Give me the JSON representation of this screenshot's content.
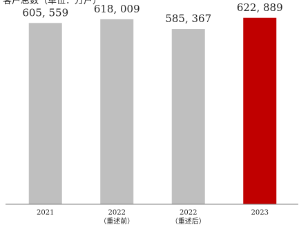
{
  "top_text": "客户总数（单位：万户）",
  "chart_data": {
    "type": "bar",
    "categories": [
      {
        "line1": "2021",
        "line2": ""
      },
      {
        "line1": "2022",
        "line2": "（重述前）"
      },
      {
        "line1": "2022",
        "line2": "（重述后）"
      },
      {
        "line1": "2023",
        "line2": ""
      }
    ],
    "values": [
      605559,
      618009,
      585367,
      622889
    ],
    "data_labels": [
      "605, 559",
      "618, 009",
      "585, 367",
      "622, 889"
    ],
    "ylim": [
      0,
      650000
    ],
    "grid": false,
    "colors": [
      "#bfbfbf",
      "#bfbfbf",
      "#bfbfbf",
      "#c00000"
    ],
    "axis_color": "#7f7f7f"
  }
}
